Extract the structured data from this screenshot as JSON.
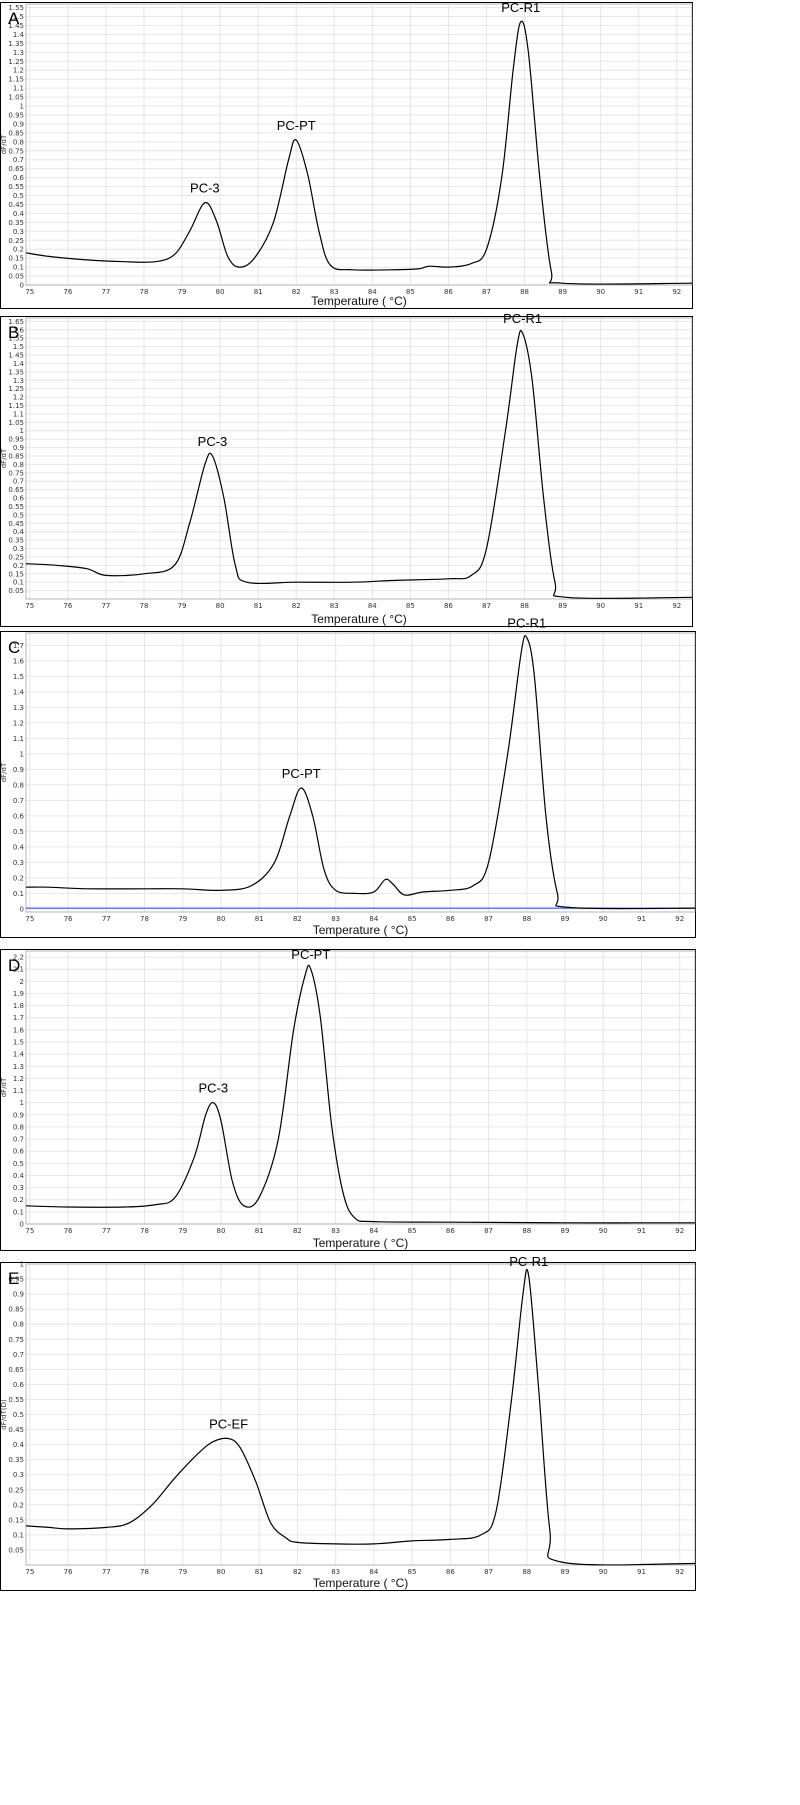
{
  "figure": {
    "colors": {
      "curve": "#000000",
      "grid": "#e6e6e6",
      "frame": "#000000",
      "baseline_C": "#1e3cff"
    }
  },
  "chart_data": [
    {
      "type": "line",
      "panel_label": "A",
      "xlabel": "Temperature ( °C)",
      "ylabel": "dF/dT",
      "xlim": [
        74.9,
        92.4
      ],
      "ylim": [
        0,
        1.57
      ],
      "xticks": [
        "75",
        "76",
        "77",
        "78",
        "79",
        "80",
        "81",
        "82",
        "83",
        "84",
        "85",
        "86",
        "87",
        "88",
        "89",
        "90",
        "91",
        "92"
      ],
      "yticks": [
        "0",
        "0.05",
        "0.1",
        "0.15",
        "0.2",
        "0.25",
        "0.3",
        "0.35",
        "0.4",
        "0.45",
        "0.5",
        "0.55",
        "0.6",
        "0.65",
        "0.7",
        "0.75",
        "0.8",
        "0.85",
        "0.9",
        "0.95",
        "1",
        "1.05",
        "1.1",
        "1.15",
        "1.2",
        "1.25",
        "1.3",
        "1.35",
        "1.4",
        "1.45",
        "1.5",
        "1.55"
      ],
      "grid": true,
      "series": [
        {
          "points": [
            [
              74.9,
              0.18
            ],
            [
              75.5,
              0.16
            ],
            [
              76.5,
              0.14
            ],
            [
              77.5,
              0.13
            ],
            [
              78.3,
              0.13
            ],
            [
              78.8,
              0.17
            ],
            [
              79.2,
              0.3
            ],
            [
              79.6,
              0.46
            ],
            [
              79.9,
              0.36
            ],
            [
              80.2,
              0.16
            ],
            [
              80.5,
              0.1
            ],
            [
              80.9,
              0.15
            ],
            [
              81.4,
              0.35
            ],
            [
              81.8,
              0.7
            ],
            [
              82.0,
              0.81
            ],
            [
              82.3,
              0.62
            ],
            [
              82.6,
              0.3
            ],
            [
              82.9,
              0.11
            ],
            [
              83.5,
              0.085
            ],
            [
              84.5,
              0.085
            ],
            [
              85.2,
              0.09
            ],
            [
              85.5,
              0.105
            ],
            [
              86.0,
              0.1
            ],
            [
              86.6,
              0.12
            ],
            [
              87.0,
              0.2
            ],
            [
              87.4,
              0.6
            ],
            [
              87.7,
              1.2
            ],
            [
              87.9,
              1.47
            ],
            [
              88.1,
              1.3
            ],
            [
              88.4,
              0.6
            ],
            [
              88.7,
              0.08
            ],
            [
              89.0,
              0.01
            ],
            [
              92.4,
              0.01
            ]
          ]
        }
      ],
      "annotations": [
        {
          "text": "PC-3",
          "x": 79.6,
          "y": 0.46
        },
        {
          "text": "PC-PT",
          "x": 82.0,
          "y": 0.81
        },
        {
          "text": "PC-R1",
          "x": 87.9,
          "y": 1.47
        }
      ]
    },
    {
      "type": "line",
      "panel_label": "B",
      "xlabel": "Temperature ( °C)",
      "ylabel": "dF/dT",
      "xlim": [
        74.9,
        92.4
      ],
      "ylim": [
        0,
        1.67
      ],
      "xticks": [
        "75",
        "76",
        "77",
        "78",
        "79",
        "80",
        "81",
        "82",
        "83",
        "84",
        "85",
        "86",
        "87",
        "88",
        "89",
        "90",
        "91",
        "92"
      ],
      "yticks": [
        "0.05",
        "0.1",
        "0.15",
        "0.2",
        "0.25",
        "0.3",
        "0.35",
        "0.4",
        "0.45",
        "0.5",
        "0.55",
        "0.6",
        "0.65",
        "0.7",
        "0.75",
        "0.8",
        "0.85",
        "0.9",
        "0.95",
        "1",
        "1.05",
        "1.1",
        "1.15",
        "1.2",
        "1.25",
        "1.3",
        "1.35",
        "1.4",
        "1.45",
        "1.5",
        "1.55",
        "1.6",
        "1.65"
      ],
      "grid": true,
      "series": [
        {
          "points": [
            [
              74.9,
              0.21
            ],
            [
              75.7,
              0.2
            ],
            [
              76.5,
              0.18
            ],
            [
              77.0,
              0.14
            ],
            [
              78.0,
              0.15
            ],
            [
              78.8,
              0.2
            ],
            [
              79.2,
              0.45
            ],
            [
              79.6,
              0.8
            ],
            [
              79.8,
              0.85
            ],
            [
              80.1,
              0.6
            ],
            [
              80.4,
              0.2
            ],
            [
              80.7,
              0.1
            ],
            [
              82.0,
              0.1
            ],
            [
              83.5,
              0.1
            ],
            [
              84.5,
              0.11
            ],
            [
              86.0,
              0.12
            ],
            [
              86.6,
              0.14
            ],
            [
              87.0,
              0.3
            ],
            [
              87.5,
              1.0
            ],
            [
              87.8,
              1.5
            ],
            [
              87.95,
              1.58
            ],
            [
              88.2,
              1.3
            ],
            [
              88.5,
              0.6
            ],
            [
              88.8,
              0.1
            ],
            [
              89.1,
              0.01
            ],
            [
              92.4,
              0.01
            ]
          ]
        }
      ],
      "annotations": [
        {
          "text": "PC-3",
          "x": 79.8,
          "y": 0.85
        },
        {
          "text": "PC-R1",
          "x": 87.95,
          "y": 1.58
        }
      ]
    },
    {
      "type": "line",
      "panel_label": "C",
      "xlabel": "Temperature ( °C)",
      "ylabel": "dF/dT",
      "xlim": [
        74.9,
        92.4
      ],
      "ylim": [
        -0.02,
        1.78
      ],
      "xticks": [
        "75",
        "76",
        "77",
        "78",
        "79",
        "80",
        "81",
        "82",
        "83",
        "84",
        "85",
        "86",
        "87",
        "88",
        "89",
        "90",
        "91",
        "92"
      ],
      "yticks": [
        "0",
        "0.1",
        "0.2",
        "0.3",
        "0.4",
        "0.5",
        "0.6",
        "0.7",
        "0.8",
        "0.9",
        "1",
        "1.1",
        "1.2",
        "1.3",
        "1.4",
        "1.5",
        "1.6",
        "1.7"
      ],
      "grid": true,
      "baseline": 0.005,
      "series": [
        {
          "points": [
            [
              74.9,
              0.14
            ],
            [
              75.5,
              0.14
            ],
            [
              76.5,
              0.13
            ],
            [
              78.0,
              0.13
            ],
            [
              79.0,
              0.13
            ],
            [
              80.0,
              0.12
            ],
            [
              80.8,
              0.15
            ],
            [
              81.4,
              0.3
            ],
            [
              81.8,
              0.6
            ],
            [
              82.1,
              0.78
            ],
            [
              82.4,
              0.6
            ],
            [
              82.7,
              0.25
            ],
            [
              83.0,
              0.12
            ],
            [
              83.5,
              0.1
            ],
            [
              84.0,
              0.11
            ],
            [
              84.3,
              0.19
            ],
            [
              84.5,
              0.16
            ],
            [
              84.8,
              0.09
            ],
            [
              85.3,
              0.11
            ],
            [
              86.0,
              0.12
            ],
            [
              86.6,
              0.15
            ],
            [
              87.0,
              0.3
            ],
            [
              87.5,
              1.0
            ],
            [
              87.85,
              1.65
            ],
            [
              88.0,
              1.75
            ],
            [
              88.2,
              1.5
            ],
            [
              88.5,
              0.6
            ],
            [
              88.8,
              0.1
            ],
            [
              89.1,
              0.01
            ],
            [
              92.4,
              0.005
            ]
          ]
        }
      ],
      "annotations": [
        {
          "text": "PC-PT",
          "x": 82.1,
          "y": 0.78
        },
        {
          "text": "PC-R1",
          "x": 88.0,
          "y": 1.75
        }
      ]
    },
    {
      "type": "line",
      "panel_label": "D",
      "xlabel": "Temperature ( °C)",
      "ylabel": "dF/dT",
      "xlim": [
        74.9,
        92.4
      ],
      "ylim": [
        0,
        2.25
      ],
      "xticks": [
        "75",
        "76",
        "77",
        "78",
        "79",
        "80",
        "81",
        "82",
        "83",
        "84",
        "85",
        "86",
        "87",
        "88",
        "89",
        "90",
        "91",
        "92"
      ],
      "yticks": [
        "0",
        "0.1",
        "0.2",
        "0.3",
        "0.4",
        "0.5",
        "0.6",
        "0.7",
        "0.8",
        "0.9",
        "1",
        "1.1",
        "1.2",
        "1.3",
        "1.4",
        "1.5",
        "1.6",
        "1.7",
        "1.8",
        "1.9",
        "2",
        "2.1",
        "2.2"
      ],
      "grid": true,
      "series": [
        {
          "points": [
            [
              74.9,
              0.15
            ],
            [
              76.0,
              0.14
            ],
            [
              77.5,
              0.14
            ],
            [
              78.3,
              0.16
            ],
            [
              78.8,
              0.22
            ],
            [
              79.3,
              0.55
            ],
            [
              79.6,
              0.9
            ],
            [
              79.8,
              1.0
            ],
            [
              80.0,
              0.85
            ],
            [
              80.3,
              0.35
            ],
            [
              80.6,
              0.15
            ],
            [
              81.0,
              0.22
            ],
            [
              81.5,
              0.7
            ],
            [
              81.9,
              1.6
            ],
            [
              82.2,
              2.05
            ],
            [
              82.35,
              2.1
            ],
            [
              82.6,
              1.7
            ],
            [
              82.9,
              0.8
            ],
            [
              83.2,
              0.25
            ],
            [
              83.5,
              0.05
            ],
            [
              84.0,
              0.02
            ],
            [
              86.0,
              0.015
            ],
            [
              89.0,
              0.01
            ],
            [
              92.4,
              0.01
            ]
          ]
        }
      ],
      "annotations": [
        {
          "text": "PC-3",
          "x": 79.8,
          "y": 1.0
        },
        {
          "text": "PC-PT",
          "x": 82.35,
          "y": 2.1
        }
      ]
    },
    {
      "type": "line",
      "panel_label": "E",
      "xlabel": "Temperature ( °C)",
      "ylabel": "dF/dT(D)",
      "xlim": [
        74.9,
        92.4
      ],
      "ylim": [
        0,
        1.0
      ],
      "xticks": [
        "75",
        "76",
        "77",
        "78",
        "79",
        "80",
        "81",
        "82",
        "83",
        "84",
        "85",
        "86",
        "87",
        "88",
        "89",
        "90",
        "91",
        "92"
      ],
      "yticks": [
        "0.05",
        "0.1",
        "0.15",
        "0.2",
        "0.25",
        "0.3",
        "0.35",
        "0.4",
        "0.45",
        "0.5",
        "0.55",
        "0.6",
        "0.65",
        "0.7",
        "0.75",
        "0.8",
        "0.85",
        "0.9",
        "0.95",
        "1"
      ],
      "grid": true,
      "series": [
        {
          "points": [
            [
              74.9,
              0.13
            ],
            [
              75.5,
              0.125
            ],
            [
              76.0,
              0.12
            ],
            [
              77.0,
              0.125
            ],
            [
              77.6,
              0.14
            ],
            [
              78.2,
              0.2
            ],
            [
              78.8,
              0.29
            ],
            [
              79.4,
              0.37
            ],
            [
              79.8,
              0.41
            ],
            [
              80.2,
              0.42
            ],
            [
              80.5,
              0.39
            ],
            [
              80.9,
              0.28
            ],
            [
              81.3,
              0.14
            ],
            [
              81.7,
              0.09
            ],
            [
              82.0,
              0.075
            ],
            [
              83.0,
              0.07
            ],
            [
              84.0,
              0.07
            ],
            [
              85.0,
              0.08
            ],
            [
              86.0,
              0.085
            ],
            [
              86.8,
              0.1
            ],
            [
              87.2,
              0.18
            ],
            [
              87.6,
              0.55
            ],
            [
              87.9,
              0.9
            ],
            [
              88.05,
              0.96
            ],
            [
              88.3,
              0.6
            ],
            [
              88.6,
              0.12
            ],
            [
              88.9,
              0.01
            ],
            [
              92.4,
              0.005
            ]
          ]
        }
      ],
      "annotations": [
        {
          "text": "PC-EF",
          "x": 80.2,
          "y": 0.42
        },
        {
          "text": "PC-R1",
          "x": 88.05,
          "y": 0.96
        }
      ]
    }
  ]
}
